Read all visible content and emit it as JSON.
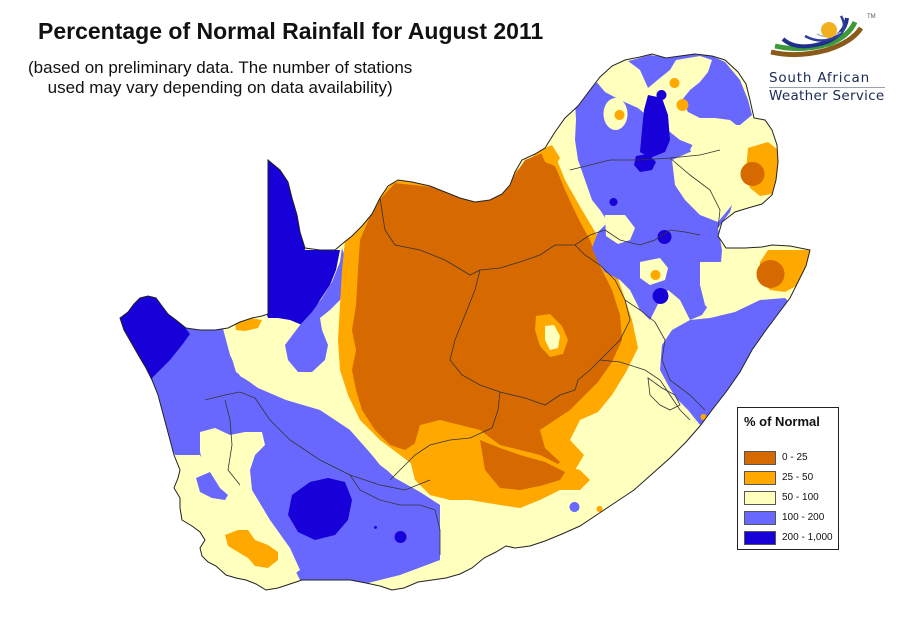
{
  "title": "Percentage of Normal Rainfall for August 2011",
  "subtitle": {
    "line1": "(based on preliminary data. The number of stations",
    "line2": "used may vary depending on data availability)"
  },
  "logo": {
    "line1": "South African",
    "line2": "Weather Service",
    "trademark": "TM"
  },
  "legend": {
    "title": "% of Normal",
    "items": [
      {
        "label": "0 - 25",
        "color": "#D66A00"
      },
      {
        "label": "25 - 50",
        "color": "#FFA800"
      },
      {
        "label": "50 - 100",
        "color": "#FFFFBE"
      },
      {
        "label": "100 - 200",
        "color": "#6868FF"
      },
      {
        "label": "200 - 1,000",
        "color": "#1800D8"
      }
    ]
  },
  "colors": {
    "class_0_25": "#D66A00",
    "class_25_50": "#FFA800",
    "class_50_100": "#FFFFBE",
    "class_100_200": "#6868FF",
    "class_200_1000": "#1800D8",
    "border": "#333333"
  }
}
